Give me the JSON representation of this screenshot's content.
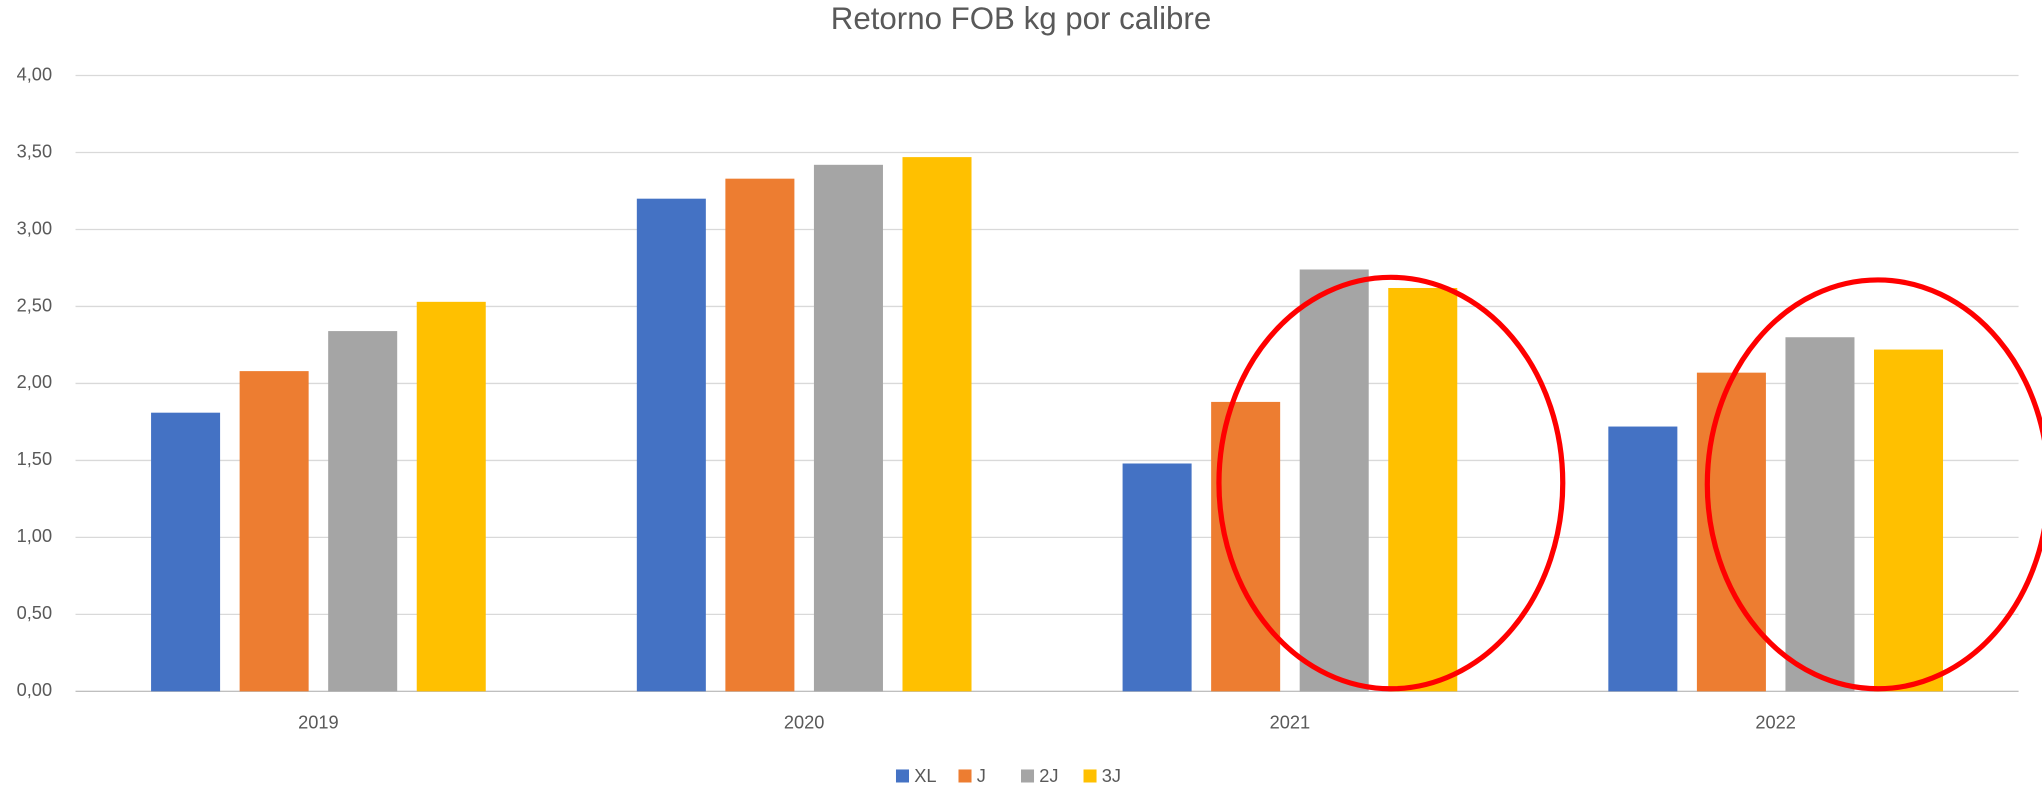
{
  "chart_data": {
    "type": "bar",
    "title": "Retorno FOB kg por calibre",
    "categories": [
      "2019",
      "2020",
      "2021",
      "2022"
    ],
    "series": [
      {
        "name": "XL",
        "color": "#4472c4",
        "values": [
          1.81,
          3.2,
          1.48,
          1.72
        ]
      },
      {
        "name": "J",
        "color": "#ed7d31",
        "values": [
          2.08,
          3.33,
          1.88,
          2.07
        ]
      },
      {
        "name": "2J",
        "color": "#a5a5a5",
        "values": [
          2.34,
          3.42,
          2.74,
          2.3
        ]
      },
      {
        "name": "3J",
        "color": "#ffc000",
        "values": [
          2.53,
          3.47,
          2.62,
          2.22
        ]
      }
    ],
    "ylim": [
      0,
      4
    ],
    "yticks": [
      {
        "value": 0,
        "label": "0,00"
      },
      {
        "value": 0.5,
        "label": "0,50"
      },
      {
        "value": 1,
        "label": "1,00"
      },
      {
        "value": 1.5,
        "label": "1,50"
      },
      {
        "value": 2,
        "label": "2,00"
      },
      {
        "value": 2.5,
        "label": "2,50"
      },
      {
        "value": 3,
        "label": "3,00"
      },
      {
        "value": 3.5,
        "label": "3,50"
      },
      {
        "value": 4,
        "label": "4,00"
      }
    ],
    "grid": true,
    "legend": "bottom"
  }
}
